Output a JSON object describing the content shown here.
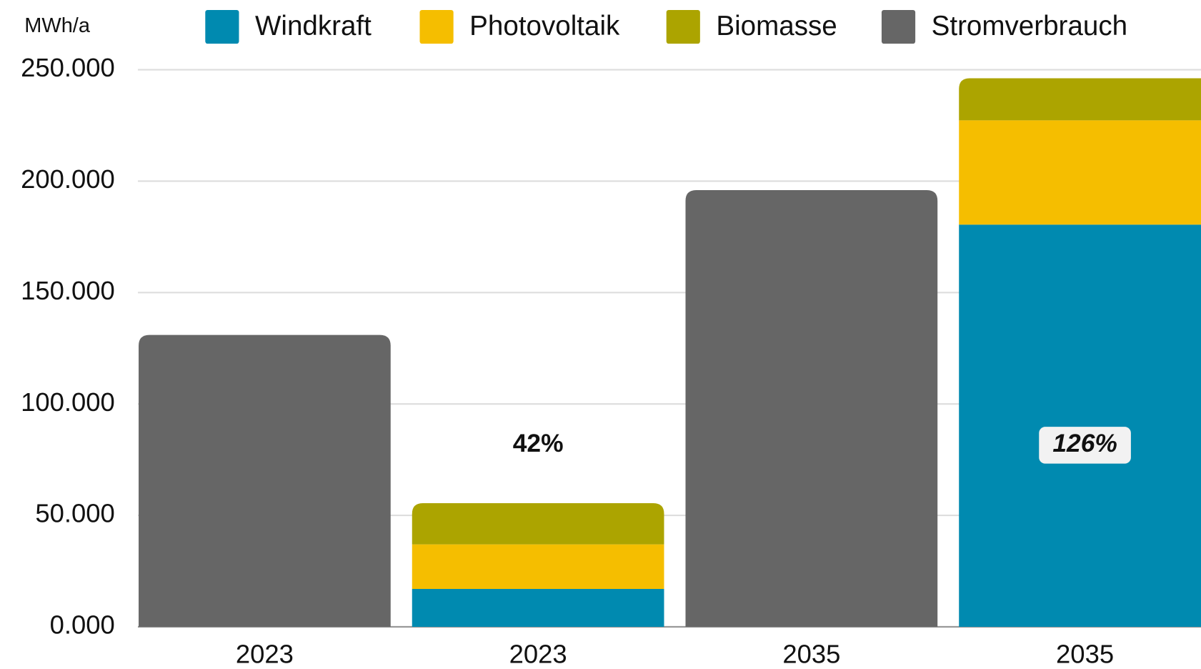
{
  "chart_data": {
    "type": "stacked_bar",
    "y_axis_label": "MWh/a",
    "categories": [
      "2023",
      "2023",
      "2035",
      "2035"
    ],
    "series": [
      {
        "name": "Windkraft",
        "color": "#008ab0",
        "values": [
          null,
          17000,
          null,
          180500
        ]
      },
      {
        "name": "Photovoltaik",
        "color": "#f5be00",
        "values": [
          null,
          20000,
          null,
          46800
        ]
      },
      {
        "name": "Biomasse",
        "color": "#aca400",
        "values": [
          null,
          18500,
          null,
          18900
        ]
      },
      {
        "name": "Stromverbrauch",
        "color": "#666666",
        "values": [
          131000,
          null,
          196000,
          null
        ]
      }
    ],
    "share_labels": [
      null,
      "42%",
      null,
      "126%"
    ],
    "ylim": [
      0,
      250000
    ],
    "yticks": [
      {
        "value": 0,
        "label": "0.000"
      },
      {
        "value": 50000,
        "label": "50.000"
      },
      {
        "value": 100000,
        "label": "100.000"
      },
      {
        "value": 150000,
        "label": "150.000"
      },
      {
        "value": 200000,
        "label": "200.000"
      },
      {
        "value": 250000,
        "label": "250.000"
      }
    ],
    "grid": true,
    "legend": "top"
  }
}
